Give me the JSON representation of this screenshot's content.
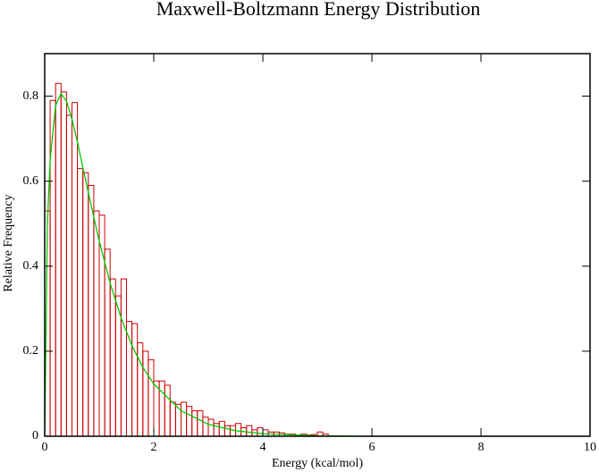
{
  "chart_data": {
    "type": "histogram",
    "title": "Maxwell-Boltzmann Energy Distribution",
    "x_label": "Energy (kcal/mol)",
    "y_label": "Relative Frequency",
    "bins": [
      0,
      0.1,
      0.2,
      0.3,
      0.4,
      0.5,
      0.6,
      0.7,
      0.8,
      0.9,
      1.0,
      1.1,
      1.2,
      1.3,
      1.4,
      1.5,
      1.6,
      1.7,
      1.8,
      1.9,
      2.0,
      2.1,
      2.2,
      2.3,
      2.4,
      2.5,
      2.6,
      2.7,
      2.8,
      2.9,
      3.0,
      3.1,
      3.2,
      3.3,
      3.4,
      3.5,
      3.6,
      3.7,
      3.8,
      3.9,
      4.0,
      4.1,
      4.2,
      4.3,
      4.4,
      4.5,
      4.6,
      4.7,
      4.8,
      4.9,
      5.0,
      5.1,
      5.2
    ],
    "values": [
      0.53,
      0.79,
      0.83,
      0.81,
      0.755,
      0.785,
      0.63,
      0.62,
      0.59,
      0.53,
      0.52,
      0.44,
      0.37,
      0.33,
      0.37,
      0.27,
      0.265,
      0.22,
      0.2,
      0.18,
      0.13,
      0.13,
      0.12,
      0.08,
      0.075,
      0.08,
      0.07,
      0.06,
      0.06,
      0.045,
      0.04,
      0.03,
      0.035,
      0.025,
      0.025,
      0.03,
      0.02,
      0.025,
      0.015,
      0.02,
      0.015,
      0.01,
      0.01,
      0.008,
      0.005,
      0.005,
      0.003,
      0.005,
      0.003,
      0.004,
      0.01,
      0.005
    ],
    "color": "#cc0000",
    "curve": {
      "color": "#00cc00",
      "x": [
        0,
        0.05,
        0.1,
        0.2,
        0.3,
        0.4,
        0.5,
        0.6,
        0.8,
        1.0,
        1.2,
        1.4,
        1.6,
        1.8,
        2.0,
        2.5,
        3.0,
        3.5,
        4.0,
        5.0,
        6.0,
        10.0
      ],
      "values": [
        0,
        0.5,
        0.65,
        0.778,
        0.806,
        0.788,
        0.746,
        0.692,
        0.573,
        0.459,
        0.36,
        0.279,
        0.213,
        0.162,
        0.123,
        0.06,
        0.028,
        0.013,
        0.006,
        0.001,
        0,
        0
      ]
    },
    "xlim": [
      0,
      10
    ],
    "xticks": [
      0,
      2,
      4,
      6,
      8,
      10
    ],
    "ylim": [
      0,
      0.9
    ],
    "yticks": [
      0,
      0.2,
      0.4,
      0.6,
      0.8
    ],
    "grid": false
  }
}
